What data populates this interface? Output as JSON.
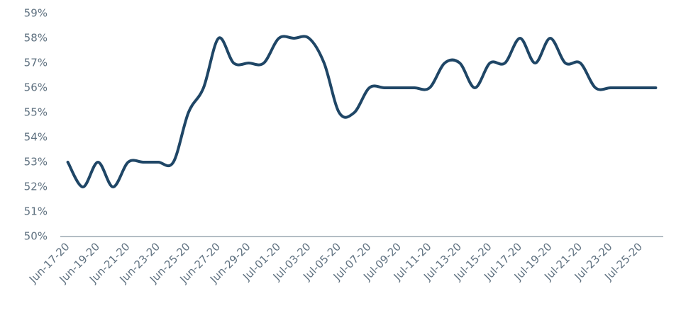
{
  "chart_data": {
    "type": "line",
    "categories": [
      "Jun-17-20",
      null,
      "Jun-19-20",
      null,
      "Jun-21-20",
      null,
      "Jun-23-20",
      null,
      "Jun-25-20",
      null,
      "Jun-27-20",
      null,
      "Jun-29-20",
      null,
      "Jul-01-20",
      null,
      "Jul-03-20",
      null,
      "Jul-05-20",
      null,
      "Jul-07-20",
      null,
      "Jul-09-20",
      null,
      "Jul-11-20",
      null,
      "Jul-13-20",
      null,
      "Jul-15-20",
      null,
      "Jul-17-20",
      null,
      "Jul-19-20",
      null,
      "Jul-21-20",
      null,
      "Jul-23-20",
      null,
      "Jul-25-20",
      null
    ],
    "values": [
      53,
      52,
      53,
      52,
      53,
      53,
      53,
      53,
      55,
      56,
      58,
      57,
      57,
      57,
      58,
      58,
      58,
      57,
      55,
      55,
      56,
      56,
      56,
      56,
      56,
      57,
      57,
      56,
      57,
      57,
      58,
      57,
      58,
      57,
      57,
      56,
      56,
      56,
      56,
      56
    ],
    "color": "#1f4666",
    "ylim": [
      50,
      59
    ],
    "yticks": [
      {
        "value": 50,
        "label": "50%"
      },
      {
        "value": 51,
        "label": "51%"
      },
      {
        "value": 52,
        "label": "52%"
      },
      {
        "value": 53,
        "label": "53%"
      },
      {
        "value": 54,
        "label": "54%"
      },
      {
        "value": 55,
        "label": "55%"
      },
      {
        "value": 56,
        "label": "56%"
      },
      {
        "value": 57,
        "label": "57%"
      },
      {
        "value": 58,
        "label": "58%"
      },
      {
        "value": 59,
        "label": "59%"
      }
    ],
    "grid": false
  }
}
